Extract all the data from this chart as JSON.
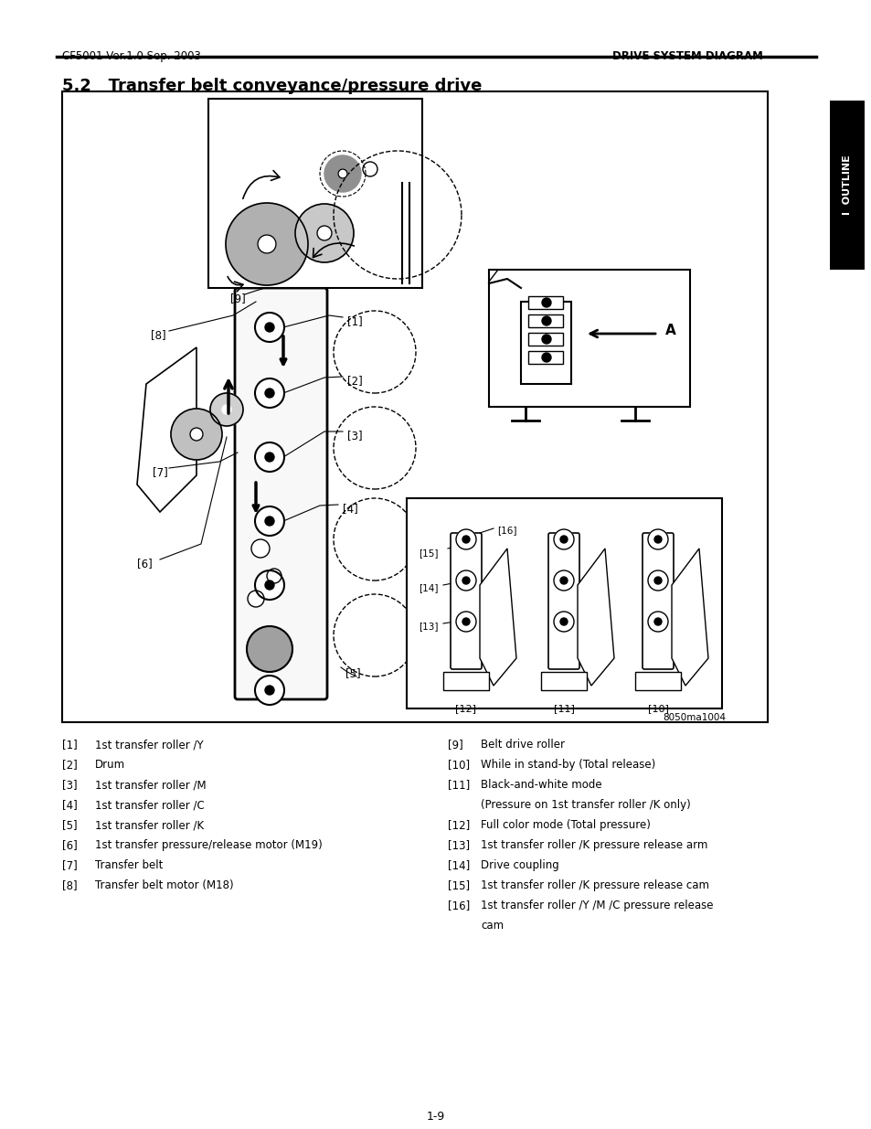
{
  "page_header_left": "CF5001 Ver.1.0 Sep. 2003",
  "page_header_right": "DRIVE SYSTEM DIAGRAM",
  "section_title": "5.2   Transfer belt conveyance/pressure drive",
  "sidebar_text": "I  OUTLINE",
  "page_number": "1-9",
  "image_caption": "8050ma1004",
  "legend_left": [
    {
      "num": "[1]",
      "text": "1st transfer roller /Y"
    },
    {
      "num": "[2]",
      "text": "Drum"
    },
    {
      "num": "[3]",
      "text": "1st transfer roller /M"
    },
    {
      "num": "[4]",
      "text": "1st transfer roller /C"
    },
    {
      "num": "[5]",
      "text": "1st transfer roller /K"
    },
    {
      "num": "[6]",
      "text": "1st transfer pressure/release motor (M19)"
    },
    {
      "num": "[7]",
      "text": "Transfer belt"
    },
    {
      "num": "[8]",
      "text": "Transfer belt motor (M18)"
    }
  ],
  "legend_right": [
    {
      "num": "[9]",
      "text": "Belt drive roller",
      "indent": false
    },
    {
      "num": "[10]",
      "text": "While in stand-by (Total release)",
      "indent": false
    },
    {
      "num": "[11]",
      "text": "Black-and-white mode",
      "indent": false
    },
    {
      "num": "",
      "text": "(Pressure on 1st transfer roller /K only)",
      "indent": true
    },
    {
      "num": "[12]",
      "text": "Full color mode (Total pressure)",
      "indent": false
    },
    {
      "num": "[13]",
      "text": "1st transfer roller /K pressure release arm",
      "indent": false
    },
    {
      "num": "[14]",
      "text": "Drive coupling",
      "indent": false
    },
    {
      "num": "[15]",
      "text": "1st transfer roller /K pressure release cam",
      "indent": false
    },
    {
      "num": "[16]",
      "text": "1st transfer roller /Y /M /C pressure release",
      "indent": false
    },
    {
      "num": "",
      "text": "cam",
      "indent": true
    }
  ],
  "bg_color": "#ffffff",
  "text_color": "#000000",
  "header_fontsize": 8.5,
  "title_fontsize": 13,
  "legend_fontsize": 8.5,
  "sidebar_bg": "#000000",
  "sidebar_text_color": "#ffffff",
  "sidebar_fontsize": 8
}
